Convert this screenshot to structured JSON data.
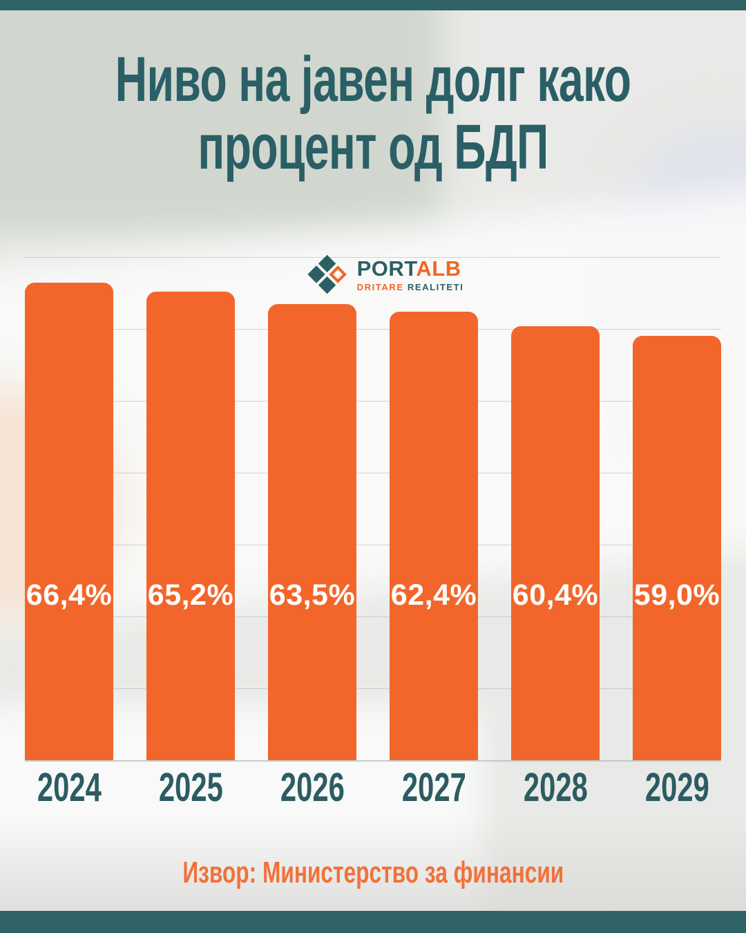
{
  "title": {
    "line1": "Ниво на јавен долг како",
    "line2": "процент од БДП"
  },
  "logo": {
    "name_primary": "PORT",
    "name_accent": "ALB",
    "tagline_accent": "DRITARE",
    "tagline_primary": "REALITETI"
  },
  "source": {
    "label": "Извор: Министерство за финансии"
  },
  "colors": {
    "frame_teal": "#2f6367",
    "title_teal": "#2b5f66",
    "bar_orange": "#f2662b",
    "logo_orange": "#f26522",
    "logo_teal": "#2c5f63",
    "source_orange": "#f2713a",
    "bar_value_text": "#ffffff"
  },
  "chart_data": {
    "type": "bar",
    "title": "Ниво на јавен долг како процент од БДП",
    "categories": [
      "2024",
      "2025",
      "2026",
      "2027",
      "2028",
      "2029"
    ],
    "values": [
      66.4,
      65.2,
      63.5,
      62.4,
      60.4,
      59.0
    ],
    "value_labels": [
      "66,4%",
      "65,2%",
      "63,5%",
      "62,4%",
      "60,4%",
      "59,0%"
    ],
    "xlabel": "",
    "ylabel": "",
    "ylim": [
      0,
      75
    ],
    "gridlines": [
      10,
      20,
      30,
      40,
      50,
      60,
      70
    ],
    "grid": true,
    "legend": false,
    "bar_color": "#f2662b",
    "source": "Извор: Министерство за финансии"
  }
}
